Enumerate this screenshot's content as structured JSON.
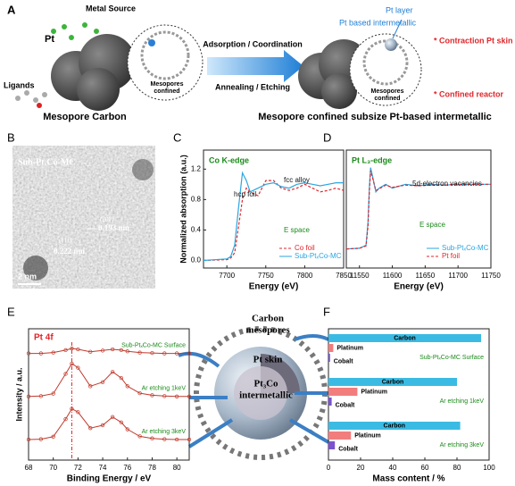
{
  "panel_a": {
    "label": "A",
    "pt": "Pt",
    "metal_source": "Metal Source",
    "ligands": "Ligands",
    "left_zoom": [
      "Mesopores",
      "confined"
    ],
    "left_caption": "Mesopore Carbon",
    "arrow_top": "Adsorption / Coordination",
    "arrow_bottom": "Annealing / Etching",
    "pt_layer": "Pt layer",
    "pt_intermetallic": "Pt based intermetallic",
    "note_1": "* Contraction Pt skin",
    "note_2": "* Confined reactor",
    "right_zoom": [
      "Mesopores",
      "confined"
    ],
    "right_caption": "Mesopore confined subsize Pt-based intermetallic"
  },
  "panel_b": {
    "label": "B",
    "sample": "Sub-PtₓCo-MC",
    "plane_1": "(200)",
    "spacing_1": "0.193 nm",
    "plane_2": "(111)",
    "spacing_2": "0.222 nm",
    "scale": "2 nm"
  },
  "center": {
    "carbon": [
      "Carbon",
      "mesopores"
    ],
    "skin": "Pt skin",
    "core": [
      "Pt₃Co",
      "intermetallic"
    ]
  },
  "chart_data": [
    {
      "type": "line",
      "panel": "C",
      "title": "Co K-edge",
      "xlabel": "Energy (eV)",
      "ylabel": "Normalized absorption (a.u.)",
      "annotations": [
        "fcc alloy",
        "hcp foil",
        "E space"
      ],
      "x": [
        7670,
        7700,
        7705,
        7710,
        7715,
        7720,
        7725,
        7730,
        7740,
        7750,
        7760,
        7770,
        7780,
        7790,
        7800,
        7810,
        7820,
        7830,
        7840,
        7850
      ],
      "series": [
        {
          "name": "Co foil",
          "color": "#e0262b",
          "dash": true,
          "values": [
            0,
            0.01,
            0.03,
            0.1,
            0.45,
            0.8,
            0.95,
            0.9,
            0.85,
            1.05,
            1.05,
            0.95,
            0.92,
            0.95,
            1.0,
            0.95,
            0.9,
            0.92,
            0.95,
            0.92
          ]
        },
        {
          "name": "Sub-PtₓCo-MC",
          "color": "#2aa6e0",
          "dash": false,
          "values": [
            0,
            0.02,
            0.05,
            0.2,
            0.7,
            1.15,
            1.05,
            0.9,
            0.95,
            1.0,
            1.02,
            0.97,
            0.95,
            1.0,
            1.02,
            1.0,
            0.98,
            1.0,
            1.02,
            1.02
          ]
        }
      ],
      "xlim": [
        7670,
        7850
      ],
      "ylim": [
        -0.1,
        1.45
      ],
      "xticks": [
        7700,
        7750,
        7800,
        7850
      ],
      "yticks": [
        {
          "value": 0,
          "label": "0.0"
        },
        {
          "value": 0.4,
          "label": "0.4"
        },
        {
          "value": 0.8,
          "label": "0.8"
        },
        {
          "value": 1.2,
          "label": "1.2"
        }
      ],
      "legend": "lower right"
    },
    {
      "type": "line",
      "panel": "D",
      "title": "Pt L₃-edge",
      "xlabel": "Energy (eV)",
      "annotations": [
        "5d-electron vacancies",
        "E space"
      ],
      "x": [
        11530,
        11550,
        11560,
        11563,
        11565,
        11567,
        11570,
        11575,
        11580,
        11590,
        11600,
        11620,
        11640,
        11660,
        11680,
        11700,
        11720,
        11750
      ],
      "series": [
        {
          "name": "Sub-PtₓCo-MC",
          "color": "#2aa6e0",
          "dash": false,
          "values": [
            0.15,
            0.16,
            0.2,
            0.5,
            0.95,
            1.22,
            1.1,
            0.9,
            0.95,
            1.0,
            0.95,
            1.0,
            0.98,
            1.0,
            0.99,
            1.0,
            1.0,
            1.0
          ]
        },
        {
          "name": "Pt foil",
          "color": "#e0262b",
          "dash": true,
          "values": [
            0.15,
            0.16,
            0.19,
            0.45,
            0.9,
            1.18,
            1.08,
            0.92,
            0.94,
            0.99,
            0.96,
            0.99,
            0.98,
            0.99,
            0.99,
            1.0,
            1.0,
            1.0
          ]
        }
      ],
      "xlim": [
        11530,
        11750
      ],
      "ylim": [
        -0.1,
        1.45
      ],
      "xticks": [
        11550,
        11600,
        11650,
        11700,
        11750
      ],
      "legend": "lower right"
    },
    {
      "type": "spectra",
      "panel": "E",
      "title": "Pt 4f",
      "xlabel": "Binding Energy / eV",
      "ylabel": "Intensity / a.u.",
      "x": [
        68,
        69,
        70,
        71,
        71.5,
        72,
        73,
        74,
        74.8,
        75.5,
        76,
        77,
        78,
        79,
        80,
        81
      ],
      "series": [
        {
          "name": "Sub-PtₓCo-MC Surface",
          "color": "#c0392b",
          "values": [
            2.6,
            2.6,
            2.62,
            2.68,
            2.72,
            2.7,
            2.64,
            2.67,
            2.7,
            2.68,
            2.65,
            2.62,
            2.61,
            2.6,
            2.6,
            2.6
          ]
        },
        {
          "name": "Ar etching 1keV",
          "color": "#c0392b",
          "values": [
            1.55,
            1.56,
            1.62,
            2.1,
            2.35,
            2.25,
            1.8,
            1.9,
            2.15,
            2.0,
            1.8,
            1.63,
            1.58,
            1.56,
            1.55,
            1.55
          ]
        },
        {
          "name": "Ar etching 3keV",
          "color": "#c0392b",
          "values": [
            0.5,
            0.51,
            0.57,
            1.0,
            1.25,
            1.17,
            0.78,
            0.85,
            1.05,
            0.92,
            0.75,
            0.58,
            0.53,
            0.51,
            0.5,
            0.5
          ]
        }
      ],
      "xlim": [
        68,
        81
      ],
      "ylim": [
        0,
        3.2
      ],
      "xticks": [
        68,
        70,
        72,
        74,
        76,
        78,
        80
      ],
      "reference_line": 71.5
    },
    {
      "type": "barh",
      "panel": "F",
      "xlabel": "Mass content / %",
      "categories": [
        "Sub-PtₓCo-MC Surface",
        "Ar etching 1keV",
        "Ar etching 3keV"
      ],
      "series": [
        {
          "name": "Carbon",
          "color": "#3bbbe3",
          "values": [
            95,
            80,
            82
          ]
        },
        {
          "name": "Platinum",
          "color": "#f27d7d",
          "values": [
            3,
            18,
            14
          ]
        },
        {
          "name": "Cobalt",
          "color": "#7b52cc",
          "values": [
            1,
            2,
            4
          ]
        }
      ],
      "xlim": [
        0,
        100
      ],
      "xticks": [
        0,
        20,
        40,
        60,
        80,
        100
      ]
    }
  ]
}
